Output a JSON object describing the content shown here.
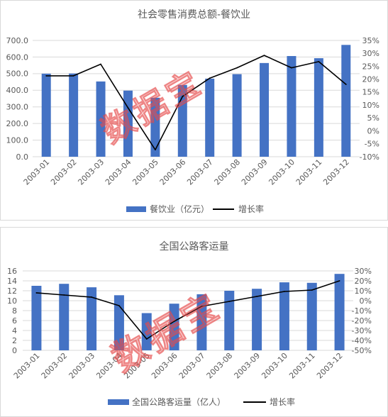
{
  "watermark": "数据宝",
  "chart_data": [
    {
      "type": "bar",
      "title": "社会零售消费总额-餐饮业",
      "categories": [
        "2003-01",
        "2003-02",
        "2003-03",
        "2003-04",
        "2003-05",
        "2003-06",
        "2003-07",
        "2003-08",
        "2003-09",
        "2003-10",
        "2003-11",
        "2003-12"
      ],
      "series": [
        {
          "name": "餐饮业（亿元）",
          "type": "bar",
          "axis": "left",
          "color": "#4472C4",
          "values": [
            500,
            501,
            453,
            398,
            355,
            432,
            470,
            497,
            564,
            606,
            593,
            673
          ]
        },
        {
          "name": "增长率",
          "type": "line",
          "axis": "right",
          "color": "#000000",
          "values": [
            21.3,
            21.3,
            25.8,
            8.9,
            -7.3,
            13.3,
            20.4,
            24.4,
            29.2,
            24.4,
            26.8,
            18.0
          ]
        }
      ],
      "ylim": [
        0,
        700
      ],
      "y_tick_labels": [
        "0.0",
        "100.0",
        "200.0",
        "300.0",
        "400.0",
        "500.0",
        "600.0",
        "700.0"
      ],
      "y2lim": [
        -10,
        35
      ],
      "y2_tick_labels": [
        "-10%",
        "-5%",
        "0%",
        "5%",
        "10%",
        "15%",
        "20%",
        "25%",
        "30%",
        "35%"
      ],
      "grid": true,
      "legend": "bottom"
    },
    {
      "type": "bar",
      "title": "全国公路客运量",
      "categories": [
        "2003-01",
        "2003-02",
        "2003-03",
        "2003-04",
        "2003-05",
        "2003-06",
        "2003-07",
        "2003-08",
        "2003-09",
        "2003-10",
        "2003-11",
        "2003-12"
      ],
      "series": [
        {
          "name": "全国公路客运量（亿人）",
          "type": "bar",
          "axis": "left",
          "color": "#4472C4",
          "values": [
            13.0,
            13.4,
            12.7,
            11.1,
            7.5,
            9.4,
            11.3,
            12.0,
            12.4,
            13.7,
            13.6,
            15.4
          ]
        },
        {
          "name": "增长率",
          "type": "line",
          "axis": "right",
          "color": "#000000",
          "values": [
            7.9,
            5.7,
            3.6,
            -5.0,
            -38.6,
            -20.7,
            -5.7,
            -0.7,
            4.3,
            9.3,
            10.7,
            20.0
          ]
        }
      ],
      "ylim": [
        0,
        16
      ],
      "y_tick_labels": [
        "0",
        "2",
        "4",
        "6",
        "8",
        "10",
        "12",
        "14",
        "16"
      ],
      "y2lim": [
        -50,
        30
      ],
      "y2_tick_labels": [
        "-50%",
        "-40%",
        "-30%",
        "-20%",
        "-10%",
        "0%",
        "10%",
        "20%",
        "30%"
      ],
      "grid": true,
      "legend": "bottom"
    }
  ]
}
